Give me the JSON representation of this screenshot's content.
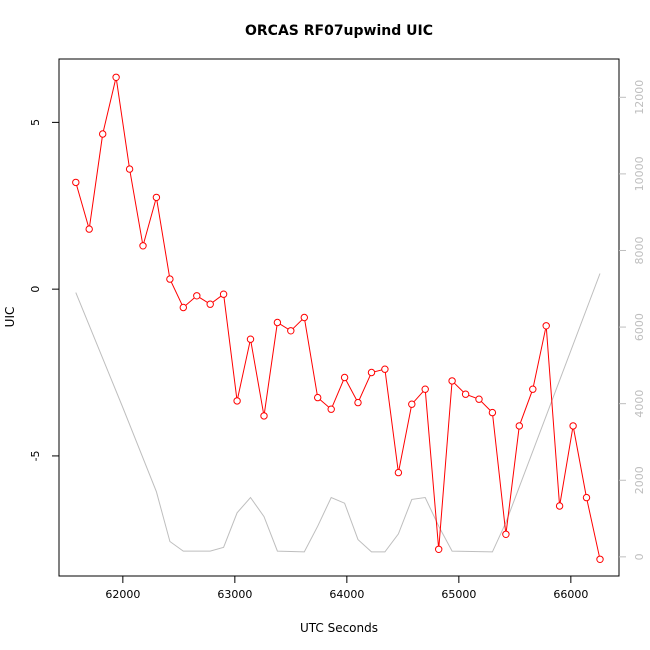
{
  "chart_data": {
    "type": "line",
    "title": "ORCAS RF07upwind UIC",
    "xlabel": "UTC Seconds",
    "ylabel": "UIC",
    "xlim": [
      61430,
      66430
    ],
    "ylim": [
      -8.6,
      6.9
    ],
    "y2lim": [
      -500,
      13000
    ],
    "x_ticks": [
      62000,
      63000,
      64000,
      65000,
      66000
    ],
    "y_ticks": [
      -5,
      0,
      5
    ],
    "y2_ticks": [
      0,
      2000,
      4000,
      6000,
      8000,
      10000,
      12000
    ],
    "grid": false,
    "series": [
      {
        "axis": "left",
        "color": "#ff0000",
        "marker": "open-circle",
        "points": [
          [
            61580,
            3.2
          ],
          [
            61700,
            1.8
          ],
          [
            61820,
            4.65
          ],
          [
            61940,
            6.35
          ],
          [
            62060,
            3.6
          ],
          [
            62180,
            1.3
          ],
          [
            62300,
            2.75
          ],
          [
            62420,
            0.3
          ],
          [
            62540,
            -0.55
          ],
          [
            62660,
            -0.2
          ],
          [
            62780,
            -0.45
          ],
          [
            62900,
            -0.15
          ],
          [
            63020,
            -3.35
          ],
          [
            63140,
            -1.5
          ],
          [
            63260,
            -3.8
          ],
          [
            63380,
            -1.0
          ],
          [
            63500,
            -1.25
          ],
          [
            63620,
            -0.85
          ],
          [
            63740,
            -3.25
          ],
          [
            63860,
            -3.6
          ],
          [
            63980,
            -2.65
          ],
          [
            64100,
            -3.4
          ],
          [
            64220,
            -2.5
          ],
          [
            64340,
            -2.4
          ],
          [
            64460,
            -5.5
          ],
          [
            64580,
            -3.45
          ],
          [
            64700,
            -3.0
          ],
          [
            64820,
            -7.8
          ],
          [
            64940,
            -2.75
          ],
          [
            65060,
            -3.15
          ],
          [
            65180,
            -3.3
          ],
          [
            65300,
            -3.7
          ],
          [
            65420,
            -7.35
          ],
          [
            65540,
            -4.1
          ],
          [
            65660,
            -3.0
          ],
          [
            65780,
            -1.1
          ],
          [
            65900,
            -6.5
          ],
          [
            66020,
            -4.1
          ],
          [
            66140,
            -6.25
          ],
          [
            66260,
            -8.1
          ]
        ]
      },
      {
        "axis": "right",
        "color": "#bebebe",
        "marker": "none",
        "points": [
          [
            61580,
            6900
          ],
          [
            62000,
            3900
          ],
          [
            62300,
            1700
          ],
          [
            62420,
            400
          ],
          [
            62540,
            150
          ],
          [
            62660,
            150
          ],
          [
            62780,
            150
          ],
          [
            62900,
            250
          ],
          [
            63020,
            1150
          ],
          [
            63140,
            1550
          ],
          [
            63260,
            1050
          ],
          [
            63380,
            150
          ],
          [
            63620,
            130
          ],
          [
            63740,
            800
          ],
          [
            63860,
            1550
          ],
          [
            63980,
            1400
          ],
          [
            64100,
            450
          ],
          [
            64220,
            130
          ],
          [
            64340,
            130
          ],
          [
            64460,
            600
          ],
          [
            64580,
            1500
          ],
          [
            64700,
            1550
          ],
          [
            64820,
            800
          ],
          [
            64940,
            150
          ],
          [
            65300,
            130
          ],
          [
            65420,
            900
          ],
          [
            66260,
            7400
          ]
        ]
      }
    ]
  }
}
